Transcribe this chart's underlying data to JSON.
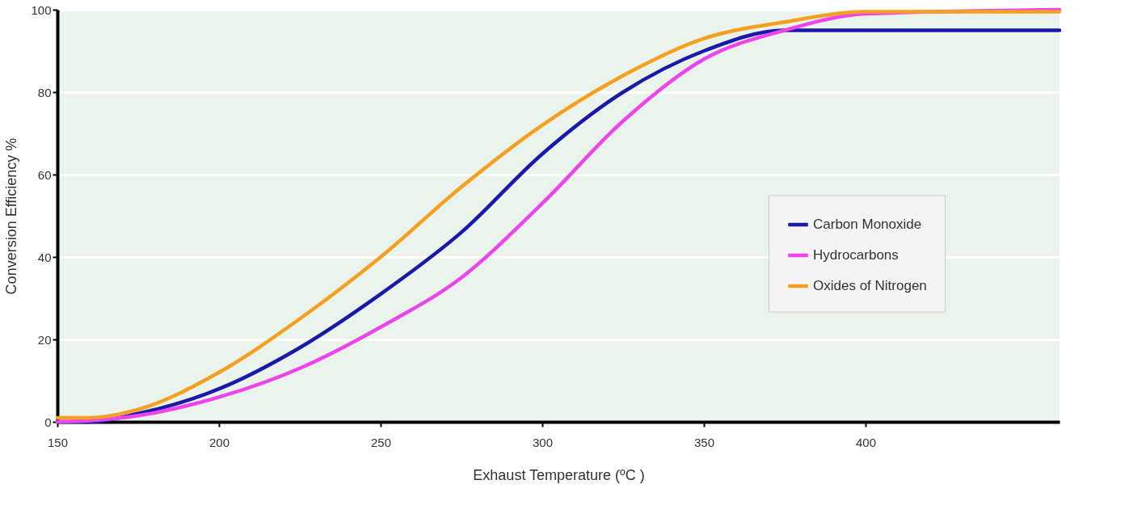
{
  "chart_data": {
    "type": "line",
    "xlabel": "Exhaust Temperature (ºC )",
    "ylabel": "Conversion Efficiency %",
    "x": [
      150,
      160,
      175,
      200,
      225,
      250,
      275,
      300,
      325,
      350,
      375,
      400,
      460
    ],
    "series": [
      {
        "name": "Carbon Monoxide",
        "color": "#1a1aaa",
        "values": [
          0,
          0,
          2,
          8,
          18,
          31,
          46,
          65,
          80,
          90,
          95,
          95,
          95
        ]
      },
      {
        "name": "Hydrocarbons",
        "color": "#ee44ee",
        "values": [
          0,
          0.3,
          1.5,
          6,
          13,
          23,
          35,
          53,
          73,
          88,
          95,
          99,
          100
        ]
      },
      {
        "name": "Oxides of Nitrogen",
        "color": "#f5a020",
        "values": [
          1,
          1,
          3,
          12,
          25,
          40,
          57,
          72,
          84,
          93,
          97,
          99.5,
          99.5
        ]
      }
    ],
    "xlim": [
      150,
      460
    ],
    "xticks": [
      150,
      200,
      250,
      300,
      350,
      400
    ],
    "ylim": [
      0,
      100
    ],
    "yticks": [
      0,
      20,
      40,
      60,
      80,
      100
    ],
    "grid": "y",
    "legend": "right",
    "marker": "none",
    "line_style": "solid"
  }
}
